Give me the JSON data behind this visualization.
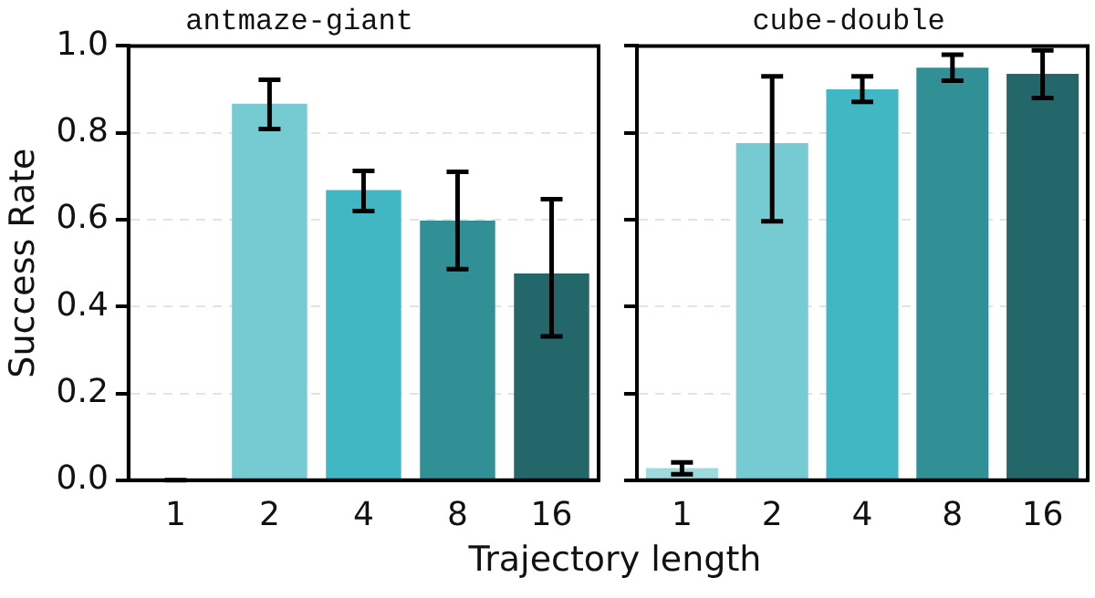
{
  "chart_data": [
    {
      "type": "bar",
      "title": "antmaze-giant",
      "ylabel": "Success Rate",
      "xlabel": "Trajectory length",
      "categories": [
        "1",
        "2",
        "4",
        "8",
        "16"
      ],
      "values": [
        0,
        0.867,
        0.668,
        0.598,
        0.476
      ],
      "errors": [
        [
          0,
          0
        ],
        [
          0.809,
          0.922
        ],
        [
          0.62,
          0.712
        ],
        [
          0.486,
          0.71
        ],
        [
          0.331,
          0.647
        ]
      ],
      "colors": [
        "#9ed9de",
        "#76cbd3",
        "#40b7c3",
        "#318f96",
        "#23676b"
      ],
      "ylim": [
        0,
        1
      ],
      "yticks": [
        {
          "value": 0,
          "label": "0.0"
        },
        {
          "value": 0.2,
          "label": "0.2"
        },
        {
          "value": 0.4,
          "label": "0.4"
        },
        {
          "value": 0.6,
          "label": "0.6"
        },
        {
          "value": 0.8,
          "label": "0.8"
        },
        {
          "value": 1,
          "label": "1.0"
        }
      ],
      "grid": "y"
    },
    {
      "type": "bar",
      "title": "cube-double",
      "categories": [
        "1",
        "2",
        "4",
        "8",
        "16"
      ],
      "values": [
        0.028,
        0.776,
        0.9,
        0.95,
        0.936
      ],
      "errors": [
        [
          0.014,
          0.041
        ],
        [
          0.596,
          0.93
        ],
        [
          0.871,
          0.93
        ],
        [
          0.92,
          0.98
        ],
        [
          0.88,
          0.99
        ]
      ],
      "colors": [
        "#9ed9de",
        "#76cbd3",
        "#40b7c3",
        "#318f96",
        "#23676b"
      ],
      "ylim": [
        0,
        1
      ],
      "yticks": [
        {
          "value": 0,
          "label": null
        },
        {
          "value": 0.2,
          "label": null
        },
        {
          "value": 0.4,
          "label": null
        },
        {
          "value": 0.6,
          "label": null
        },
        {
          "value": 0.8,
          "label": null
        },
        {
          "value": 1,
          "label": null
        }
      ],
      "grid": "y",
      "tick_labels": "x"
    }
  ]
}
